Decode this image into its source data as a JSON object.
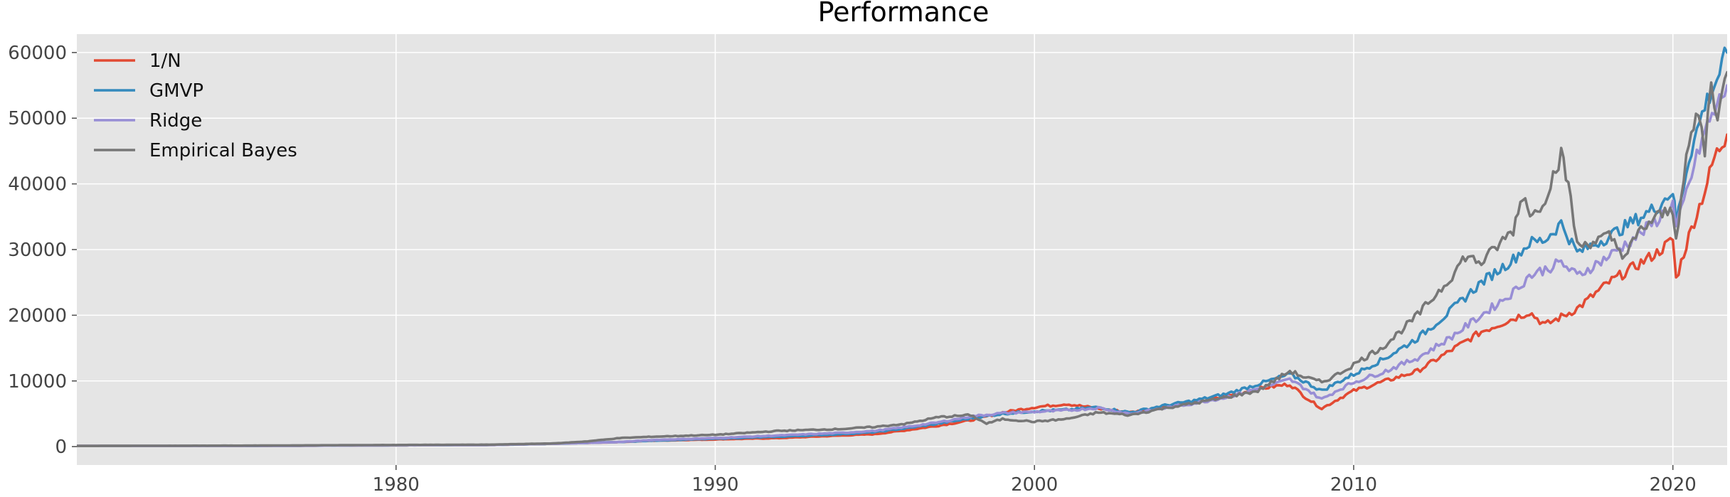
{
  "chart_data": {
    "type": "line",
    "title": "Performance",
    "xlabel": "",
    "ylabel": "",
    "xlim": [
      1970,
      2021.7
    ],
    "ylim": [
      -2800,
      62800
    ],
    "x_ticks": [
      1980,
      1990,
      2000,
      2010,
      2020
    ],
    "y_ticks": [
      0,
      10000,
      20000,
      30000,
      40000,
      50000,
      60000
    ],
    "grid": true,
    "legend_placement": "top-left",
    "series": [
      {
        "name": "1/N",
        "color": "#E24A33",
        "points": [
          [
            1970,
            100
          ],
          [
            1975,
            100
          ],
          [
            1980,
            200
          ],
          [
            1983,
            250
          ],
          [
            1985,
            450
          ],
          [
            1987,
            700
          ],
          [
            1988,
            900
          ],
          [
            1990,
            1100
          ],
          [
            1992,
            1300
          ],
          [
            1994,
            1700
          ],
          [
            1995,
            1900
          ],
          [
            1996,
            2500
          ],
          [
            1997,
            3200
          ],
          [
            1998,
            4000
          ],
          [
            1999,
            5200
          ],
          [
            2000,
            6000
          ],
          [
            2001,
            6500
          ],
          [
            2002,
            5800
          ],
          [
            2003,
            5200
          ],
          [
            2004,
            6000
          ],
          [
            2005,
            6800
          ],
          [
            2006,
            7600
          ],
          [
            2007,
            8800
          ],
          [
            2008,
            9500
          ],
          [
            2008.5,
            7500
          ],
          [
            2009,
            5800
          ],
          [
            2009.5,
            7200
          ],
          [
            2010,
            8500
          ],
          [
            2011,
            10000
          ],
          [
            2012,
            11500
          ],
          [
            2013,
            14500
          ],
          [
            2014,
            17500
          ],
          [
            2015,
            19500
          ],
          [
            2015.5,
            20500
          ],
          [
            2016,
            18500
          ],
          [
            2017,
            21000
          ],
          [
            2018,
            25000
          ],
          [
            2019,
            28000
          ],
          [
            2019.5,
            29500
          ],
          [
            2020,
            31500
          ],
          [
            2020.1,
            25500
          ],
          [
            2020.5,
            32000
          ],
          [
            2021,
            39000
          ],
          [
            2021.3,
            44000
          ],
          [
            2021.7,
            47500
          ]
        ]
      },
      {
        "name": "GMVP",
        "color": "#348ABD",
        "points": [
          [
            1970,
            100
          ],
          [
            1975,
            100
          ],
          [
            1980,
            200
          ],
          [
            1983,
            250
          ],
          [
            1985,
            450
          ],
          [
            1987,
            700
          ],
          [
            1988,
            900
          ],
          [
            1990,
            1200
          ],
          [
            1992,
            1500
          ],
          [
            1994,
            1900
          ],
          [
            1995,
            2200
          ],
          [
            1996,
            2800
          ],
          [
            1997,
            3500
          ],
          [
            1998,
            4300
          ],
          [
            1999,
            5000
          ],
          [
            2000,
            5400
          ],
          [
            2001,
            5600
          ],
          [
            2002,
            6000
          ],
          [
            2003,
            5200
          ],
          [
            2004,
            6200
          ],
          [
            2005,
            7000
          ],
          [
            2006,
            8000
          ],
          [
            2007,
            9500
          ],
          [
            2008,
            11000
          ],
          [
            2008.5,
            9800
          ],
          [
            2009,
            8500
          ],
          [
            2009.5,
            9800
          ],
          [
            2010,
            11000
          ],
          [
            2011,
            13500
          ],
          [
            2012,
            16500
          ],
          [
            2013,
            20500
          ],
          [
            2014,
            25000
          ],
          [
            2015,
            28500
          ],
          [
            2015.5,
            31000
          ],
          [
            2016,
            31500
          ],
          [
            2016.5,
            34000
          ],
          [
            2017,
            29500
          ],
          [
            2018,
            32000
          ],
          [
            2019,
            35000
          ],
          [
            2019.5,
            36500
          ],
          [
            2020,
            39000
          ],
          [
            2020.1,
            34000
          ],
          [
            2020.5,
            44000
          ],
          [
            2021,
            52000
          ],
          [
            2021.3,
            55000
          ],
          [
            2021.7,
            60000
          ]
        ]
      },
      {
        "name": "Ridge",
        "color": "#988ED5",
        "points": [
          [
            1970,
            100
          ],
          [
            1975,
            100
          ],
          [
            1980,
            200
          ],
          [
            1983,
            250
          ],
          [
            1985,
            450
          ],
          [
            1987,
            700
          ],
          [
            1988,
            1000
          ],
          [
            1990,
            1300
          ],
          [
            1992,
            1700
          ],
          [
            1994,
            2100
          ],
          [
            1995,
            2400
          ],
          [
            1996,
            3000
          ],
          [
            1997,
            3700
          ],
          [
            1998,
            4600
          ],
          [
            1999,
            5100
          ],
          [
            2000,
            5300
          ],
          [
            2001,
            5500
          ],
          [
            2002,
            5900
          ],
          [
            2003,
            5000
          ],
          [
            2004,
            5800
          ],
          [
            2005,
            6600
          ],
          [
            2006,
            7500
          ],
          [
            2007,
            8800
          ],
          [
            2008,
            10200
          ],
          [
            2008.5,
            8800
          ],
          [
            2009,
            7200
          ],
          [
            2009.5,
            8600
          ],
          [
            2010,
            9800
          ],
          [
            2011,
            11500
          ],
          [
            2012,
            13500
          ],
          [
            2013,
            16500
          ],
          [
            2014,
            20000
          ],
          [
            2015,
            23500
          ],
          [
            2015.5,
            26000
          ],
          [
            2016,
            27000
          ],
          [
            2016.5,
            28000
          ],
          [
            2017,
            26000
          ],
          [
            2018,
            29000
          ],
          [
            2019,
            32500
          ],
          [
            2019.5,
            34500
          ],
          [
            2020,
            37000
          ],
          [
            2020.1,
            33000
          ],
          [
            2020.5,
            40000
          ],
          [
            2021,
            48000
          ],
          [
            2021.3,
            51000
          ],
          [
            2021.7,
            55000
          ]
        ]
      },
      {
        "name": "Empirical Bayes",
        "color": "#777777",
        "points": [
          [
            1970,
            100
          ],
          [
            1975,
            150
          ],
          [
            1980,
            250
          ],
          [
            1983,
            300
          ],
          [
            1985,
            500
          ],
          [
            1986,
            800
          ],
          [
            1987,
            1300
          ],
          [
            1988,
            1500
          ],
          [
            1990,
            1800
          ],
          [
            1992,
            2400
          ],
          [
            1994,
            2700
          ],
          [
            1995,
            3000
          ],
          [
            1996,
            3500
          ],
          [
            1997,
            4500
          ],
          [
            1998,
            4800
          ],
          [
            1998.5,
            3500
          ],
          [
            1999,
            4200
          ],
          [
            2000,
            3800
          ],
          [
            2001,
            4200
          ],
          [
            2002,
            5200
          ],
          [
            2003,
            4800
          ],
          [
            2004,
            5800
          ],
          [
            2005,
            6600
          ],
          [
            2006,
            7500
          ],
          [
            2007,
            8500
          ],
          [
            2008,
            11500
          ],
          [
            2008.5,
            10500
          ],
          [
            2009,
            9800
          ],
          [
            2009.5,
            11000
          ],
          [
            2010,
            12500
          ],
          [
            2011,
            15500
          ],
          [
            2012,
            20000
          ],
          [
            2013,
            25500
          ],
          [
            2013.5,
            29000
          ],
          [
            2014,
            28000
          ],
          [
            2015,
            33000
          ],
          [
            2015.3,
            38500
          ],
          [
            2015.6,
            35000
          ],
          [
            2016,
            38000
          ],
          [
            2016.5,
            44500
          ],
          [
            2016.8,
            38000
          ],
          [
            2017,
            30500
          ],
          [
            2018,
            32000
          ],
          [
            2018.5,
            29000
          ],
          [
            2019,
            33000
          ],
          [
            2019.5,
            35000
          ],
          [
            2020,
            36000
          ],
          [
            2020.1,
            32000
          ],
          [
            2020.5,
            46000
          ],
          [
            2020.8,
            51000
          ],
          [
            2021,
            45000
          ],
          [
            2021.2,
            56000
          ],
          [
            2021.4,
            50000
          ],
          [
            2021.7,
            57000
          ]
        ]
      }
    ]
  }
}
